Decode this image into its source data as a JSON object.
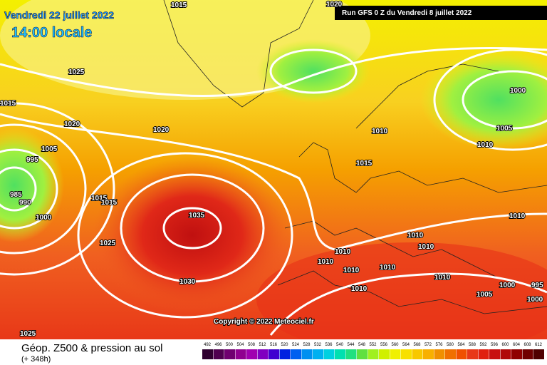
{
  "header": {
    "valid_time": "Vendredi 22 juillet 2022",
    "local_time": "14:00 locale",
    "run": "Run GFS 0 Z du Vendredi 8 juillet 2022"
  },
  "copyright": "Copyright © 2022 Meteociel.fr",
  "footer": {
    "title": "Géop. Z500 & pression au sol",
    "lead": "(+ 348h)"
  },
  "scale": {
    "labels": [
      492,
      496,
      500,
      504,
      508,
      512,
      516,
      520,
      524,
      528,
      532,
      536,
      540,
      544,
      548,
      552,
      556,
      560,
      564,
      568,
      572,
      576,
      580,
      584,
      588,
      592,
      596,
      600,
      604,
      608,
      612
    ]
  },
  "isobar_labels": [
    "1015",
    "1020",
    "1025",
    "1015",
    "1020",
    "1020",
    "1005",
    "995",
    "985",
    "990",
    "1000",
    "1015",
    "1015",
    "1035",
    "1025",
    "1030",
    "1025",
    "1010",
    "1015",
    "1000",
    "1005",
    "1010",
    "1010",
    "1010",
    "1010",
    "1010",
    "1010",
    "1010",
    "1010",
    "1010",
    "1010",
    "1000",
    "995",
    "1005",
    "1000"
  ]
}
